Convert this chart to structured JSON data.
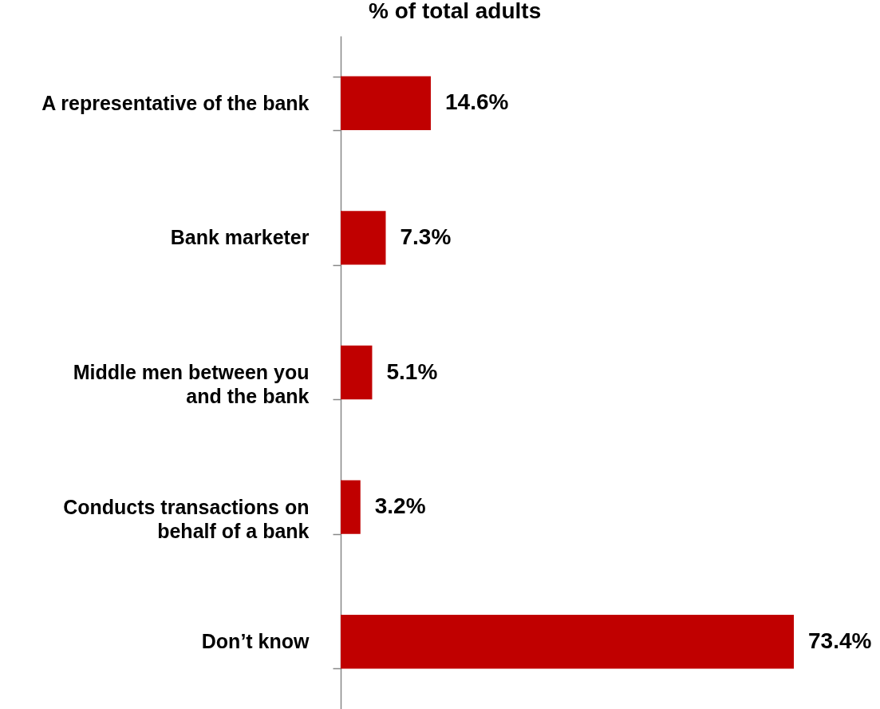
{
  "chart_data": {
    "type": "bar",
    "orientation": "horizontal",
    "title": "% of total adults",
    "categories": [
      "A representative of the bank",
      "Bank marketer",
      "Middle men between you and the bank",
      "Conducts transactions on behalf of a bank",
      "Don’t know"
    ],
    "values": [
      14.6,
      7.3,
      5.1,
      3.2,
      73.4
    ],
    "value_labels": [
      "14.6%",
      "7.3%",
      "5.1%",
      "3.2%",
      "73.4%"
    ],
    "color": "#c00000"
  }
}
